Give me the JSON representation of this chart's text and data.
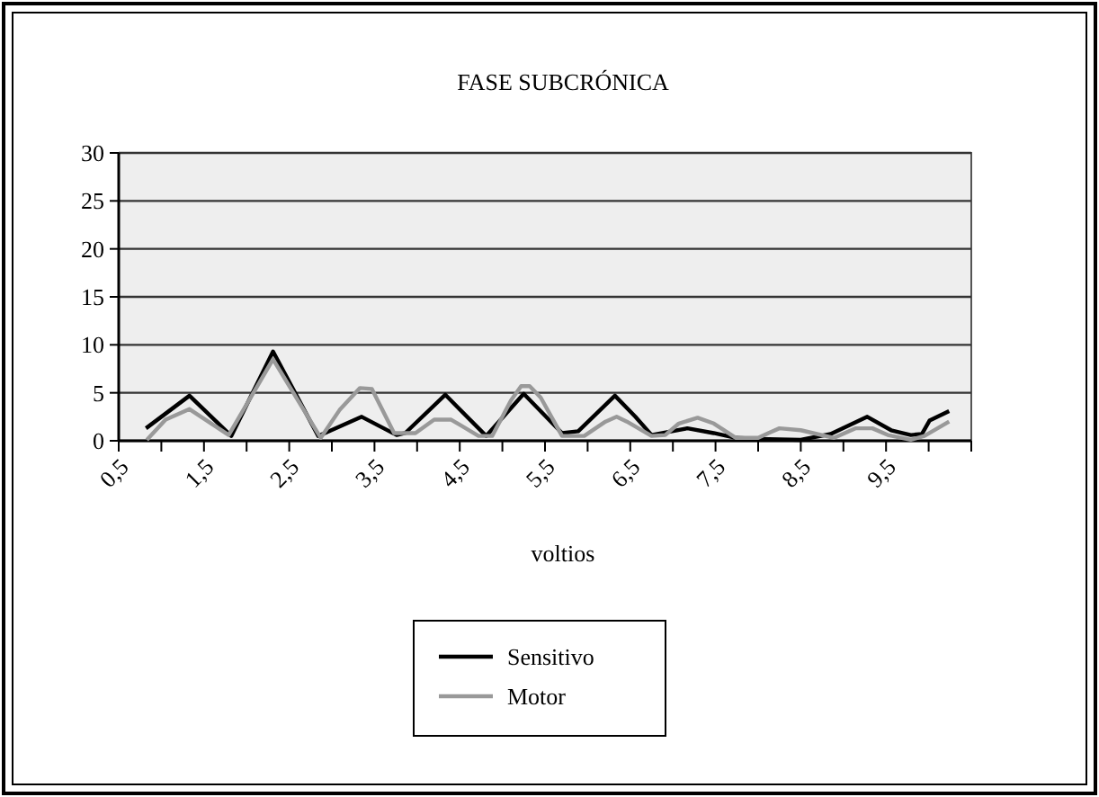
{
  "chart_data": {
    "type": "line",
    "title": "FASE SUBCRÓNICA",
    "xlabel": "voltios",
    "xlim": [
      0.5,
      10.5
    ],
    "xticks": [
      {
        "value": 0.5,
        "label": "0,5"
      },
      {
        "value": 1,
        "label": null
      },
      {
        "value": 1.5,
        "label": "1,5"
      },
      {
        "value": 2,
        "label": null
      },
      {
        "value": 2.5,
        "label": "2,5"
      },
      {
        "value": 3,
        "label": null
      },
      {
        "value": 3.5,
        "label": "3,5"
      },
      {
        "value": 4,
        "label": null
      },
      {
        "value": 4.5,
        "label": "4,5"
      },
      {
        "value": 5,
        "label": null
      },
      {
        "value": 5.5,
        "label": "5,5"
      },
      {
        "value": 6,
        "label": null
      },
      {
        "value": 6.5,
        "label": "6,5"
      },
      {
        "value": 7,
        "label": null
      },
      {
        "value": 7.5,
        "label": "7,5"
      },
      {
        "value": 8,
        "label": null
      },
      {
        "value": 8.5,
        "label": "8,5"
      },
      {
        "value": 9,
        "label": null
      },
      {
        "value": 9.5,
        "label": "9,5"
      },
      {
        "value": 10,
        "label": null
      },
      {
        "value": 10.5,
        "label": null
      }
    ],
    "ylim": [
      0,
      30
    ],
    "yticks": [
      0,
      5,
      10,
      15,
      20,
      25,
      30
    ],
    "grid": "y",
    "legend": "bottom",
    "marker": "none",
    "line_style": "solid",
    "series": [
      {
        "name": "Sensitivo",
        "color": "#000000",
        "x": [
          0.82,
          1.33,
          1.82,
          2.31,
          2.84,
          3.35,
          3.76,
          3.86,
          4.33,
          4.81,
          5.25,
          5.7,
          5.89,
          6.32,
          6.56,
          6.75,
          7.17,
          7.48,
          7.74,
          8.0,
          8.5,
          8.85,
          9.28,
          9.56,
          9.79,
          9.92,
          10.01,
          10.24
        ],
        "values": [
          1.3,
          4.7,
          0.5,
          9.3,
          0.5,
          2.5,
          0.6,
          0.8,
          4.8,
          0.5,
          4.9,
          0.8,
          1.0,
          4.7,
          2.5,
          0.6,
          1.3,
          0.8,
          0.3,
          0.2,
          0.1,
          0.7,
          2.5,
          1.1,
          0.6,
          0.7,
          2.1,
          3.1
        ]
      },
      {
        "name": "Motor",
        "color": "#999999",
        "x": [
          0.83,
          1.05,
          1.33,
          1.79,
          2.31,
          2.87,
          3.09,
          3.33,
          3.47,
          3.73,
          3.98,
          4.2,
          4.4,
          4.72,
          4.88,
          5.1,
          5.22,
          5.32,
          5.45,
          5.7,
          5.96,
          6.21,
          6.34,
          6.46,
          6.75,
          6.91,
          7.07,
          7.29,
          7.48,
          7.74,
          8.0,
          8.12,
          8.25,
          8.5,
          8.89,
          9.14,
          9.34,
          9.52,
          9.79,
          9.95,
          10.24
        ],
        "values": [
          0.1,
          2.2,
          3.3,
          0.6,
          8.5,
          0.3,
          3.2,
          5.5,
          5.4,
          0.8,
          0.8,
          2.2,
          2.2,
          0.5,
          0.5,
          4.2,
          5.7,
          5.7,
          4.5,
          0.5,
          0.5,
          2.0,
          2.5,
          2.0,
          0.5,
          0.6,
          1.8,
          2.4,
          1.8,
          0.3,
          0.3,
          0.8,
          1.3,
          1.1,
          0.3,
          1.3,
          1.3,
          0.6,
          0.1,
          0.5,
          2.0
        ]
      }
    ]
  }
}
